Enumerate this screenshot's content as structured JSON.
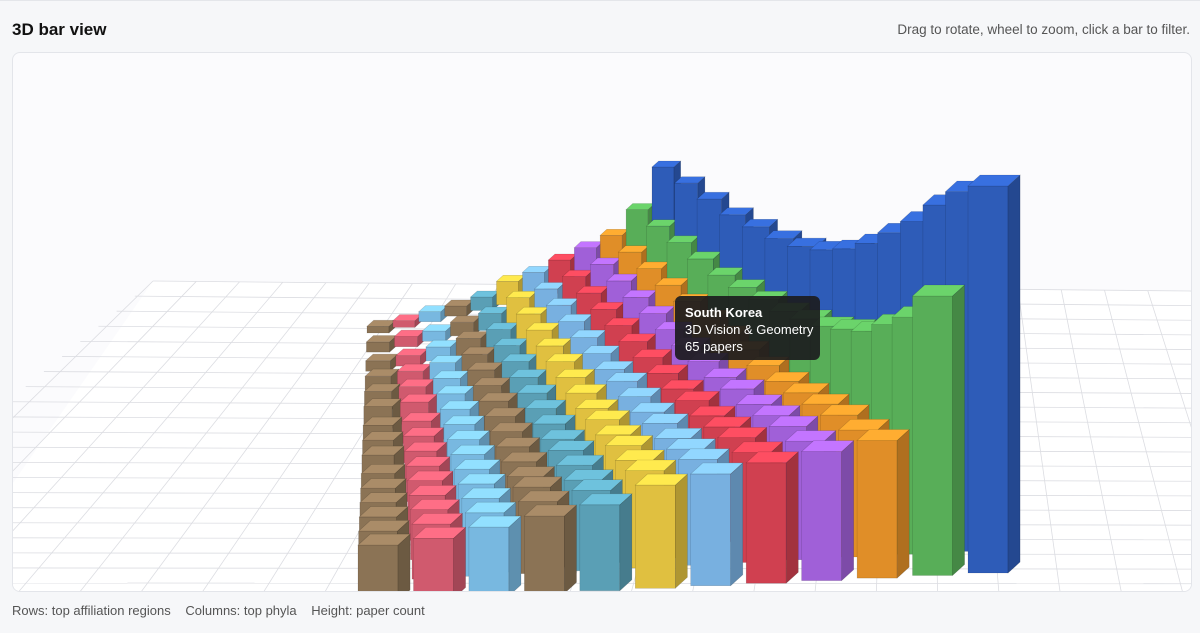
{
  "header": {
    "title": "3D bar view",
    "hint": "Drag to rotate, wheel to zoom, click a bar to filter."
  },
  "tooltip": {
    "region": "South Korea",
    "phylum": "3D Vision & Geometry",
    "count_text": "65 papers"
  },
  "footer": {
    "rows_label": "Rows: top affiliation regions",
    "columns_label": "Columns: top phyla",
    "height_label": "Height: paper count"
  },
  "chart_data": {
    "type": "bar",
    "mode": "3d",
    "series_colors": [
      "#8b7355",
      "#d05a6e",
      "#78b8e0",
      "#8b7355",
      "#5a9fb5",
      "#e0c040",
      "#78b0e0",
      "#d04050",
      "#a060d8",
      "#e08e28",
      "#58ae58",
      "#2e5cb8"
    ],
    "z": [
      [
        13,
        12,
        11,
        10,
        9,
        8,
        8,
        7,
        6,
        6,
        5,
        4,
        3,
        3,
        2
      ],
      [
        14,
        13,
        12,
        11,
        10,
        9,
        8,
        7,
        6,
        6,
        5,
        4,
        3,
        3,
        2
      ],
      [
        16,
        15,
        14,
        13,
        12,
        11,
        10,
        9,
        8,
        7,
        6,
        5,
        4,
        3,
        3
      ],
      [
        18,
        17,
        16,
        14,
        13,
        12,
        11,
        10,
        9,
        8,
        7,
        6,
        5,
        4,
        3
      ],
      [
        20,
        19,
        17,
        16,
        15,
        13,
        12,
        11,
        10,
        9,
        8,
        7,
        6,
        5,
        4
      ],
      [
        24,
        23,
        21,
        20,
        18,
        17,
        15,
        14,
        13,
        12,
        11,
        10,
        9,
        8,
        7
      ],
      [
        26,
        25,
        23,
        21,
        20,
        18,
        17,
        16,
        14,
        13,
        12,
        11,
        10,
        9,
        8
      ],
      [
        28,
        26,
        25,
        23,
        21,
        20,
        18,
        17,
        16,
        15,
        14,
        13,
        12,
        11,
        10
      ],
      [
        30,
        28,
        27,
        25,
        23,
        22,
        20,
        19,
        18,
        17,
        16,
        15,
        14,
        13,
        12
      ],
      [
        32,
        30,
        29,
        27,
        25,
        23,
        22,
        21,
        20,
        19,
        18,
        17,
        16,
        15,
        14
      ],
      [
        65,
        56,
        50,
        44,
        40,
        36,
        33,
        30,
        28,
        26,
        24,
        23,
        22,
        21,
        20
      ],
      [
        90,
        85,
        78,
        70,
        63,
        56,
        50,
        45,
        41,
        38,
        36,
        34,
        33,
        32,
        31
      ]
    ],
    "height_axis": "paper count",
    "grid": true
  }
}
